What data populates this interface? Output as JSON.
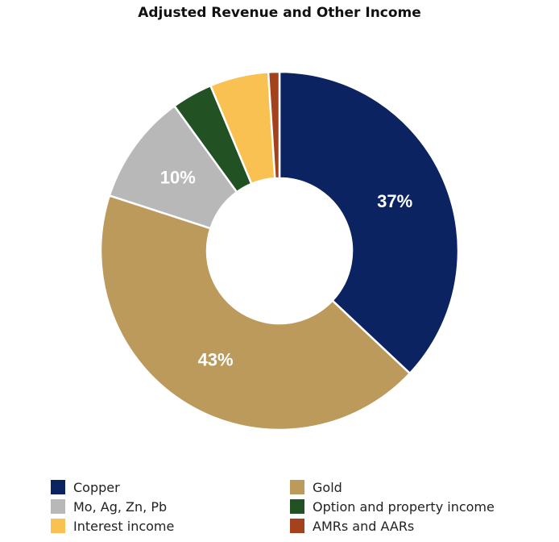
{
  "chart_data": {
    "type": "pie",
    "variant": "donut",
    "title": "Adjusted Revenue and Other Income",
    "categories": [
      "Copper",
      "Gold",
      "Mo, Ag, Zn, Pb",
      "Option and property income",
      "Interest income",
      "AMRs and AARs"
    ],
    "values": [
      37,
      43,
      10,
      3.7,
      5.3,
      1
    ],
    "colors": [
      "#0b2360",
      "#bc9a5c",
      "#b8b8b8",
      "#225224",
      "#f9c152",
      "#a5421e"
    ],
    "data_labels": [
      "37%",
      "43%",
      "10%",
      "",
      "",
      ""
    ],
    "start_angle_deg": 0,
    "direction": "clockwise",
    "legend_position": "bottom",
    "legend_columns": 2
  },
  "title": "Adjusted Revenue and Other Income",
  "legend": [
    {
      "label": "Copper",
      "color": "#0b2360"
    },
    {
      "label": "Gold",
      "color": "#bc9a5c"
    },
    {
      "label": "Mo, Ag, Zn, Pb",
      "color": "#b8b8b8"
    },
    {
      "label": "Option and property income",
      "color": "#225224"
    },
    {
      "label": "Interest income",
      "color": "#f9c152"
    },
    {
      "label": "AMRs and AARs",
      "color": "#a5421e"
    }
  ]
}
